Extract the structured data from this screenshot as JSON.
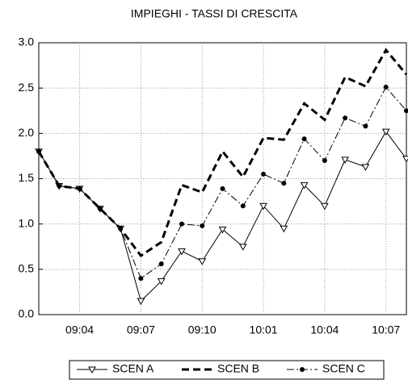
{
  "chart_data": {
    "type": "line",
    "title": "IMPIEGHI - TASSI DI CRESCITA",
    "categories": [
      null,
      null,
      "09:04",
      null,
      null,
      "09:07",
      null,
      null,
      "09:10",
      null,
      null,
      "10:01",
      null,
      null,
      "10:04",
      null,
      null,
      "10:07",
      null
    ],
    "series": [
      {
        "name": "SCEN A",
        "color": "#000000",
        "values": [
          1.8,
          1.42,
          1.39,
          1.17,
          0.95,
          0.15,
          0.37,
          0.7,
          0.59,
          0.94,
          0.75,
          1.2,
          0.95,
          1.43,
          1.2,
          1.71,
          1.63,
          2.02,
          1.72
        ]
      },
      {
        "name": "SCEN B",
        "color": "#000000",
        "values": [
          1.8,
          1.42,
          1.39,
          1.17,
          0.95,
          0.65,
          0.8,
          1.43,
          1.35,
          1.8,
          1.52,
          1.95,
          1.93,
          2.33,
          2.15,
          2.62,
          2.52,
          2.92,
          2.65
        ]
      },
      {
        "name": "SCEN C",
        "color": "#000000",
        "values": [
          1.8,
          1.42,
          1.39,
          1.17,
          0.95,
          0.4,
          0.56,
          1.0,
          0.98,
          1.39,
          1.2,
          1.55,
          1.45,
          1.94,
          1.7,
          2.17,
          2.08,
          2.51,
          2.25
        ]
      }
    ],
    "ylim": [
      0,
      3
    ],
    "yticks": [
      {
        "value": 0,
        "label": "0.0"
      },
      {
        "value": 0.5,
        "label": "0.5"
      },
      {
        "value": 1,
        "label": "1.0"
      },
      {
        "value": 1.5,
        "label": "1.5"
      },
      {
        "value": 2,
        "label": "2.0"
      },
      {
        "value": 2.5,
        "label": "2.5"
      },
      {
        "value": 3,
        "label": "3.0"
      }
    ],
    "grid": true
  }
}
